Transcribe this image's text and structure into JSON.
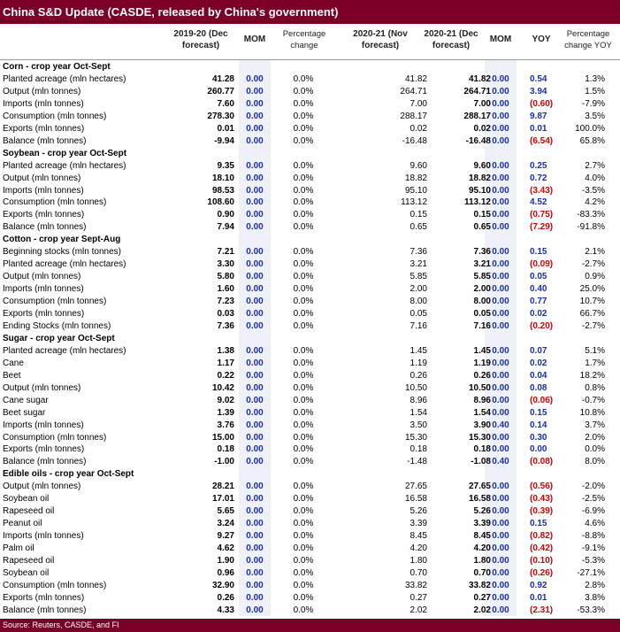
{
  "title": "China S&D Update (CASDE, released by China's government)",
  "headers": {
    "col1": "2019-20 (Dec forecast)",
    "col2": "MOM",
    "col3": "Percentage change",
    "col4": "2020-21 (Nov forecast)",
    "col5": "2020-21 (Dec forecast)",
    "col6": "MOM",
    "col7": "YOY",
    "col8": "Percentage change YOY"
  },
  "rows": [
    {
      "label": "Corn - crop year Oct-Sept",
      "section": true
    },
    {
      "label": "Planted acreage (mln hectares)",
      "v1": "41.28",
      "m1": "0.00",
      "p1": "0.0%",
      "v2": "41.82",
      "v3": "41.82",
      "m2": "0.00",
      "yoy": "0.54",
      "neg": false,
      "pct": "1.3%"
    },
    {
      "label": "Output (mln tonnes)",
      "v1": "260.77",
      "m1": "0.00",
      "p1": "0.0%",
      "v2": "264.71",
      "v3": "264.71",
      "m2": "0.00",
      "yoy": "3.94",
      "neg": false,
      "pct": "1.5%"
    },
    {
      "label": "Imports (mln tonnes)",
      "v1": "7.60",
      "m1": "0.00",
      "p1": "0.0%",
      "v2": "7.00",
      "v3": "7.00",
      "m2": "0.00",
      "yoy": "(0.60)",
      "neg": true,
      "pct": "-7.9%"
    },
    {
      "label": "Consumption (mln tonnes)",
      "v1": "278.30",
      "m1": "0.00",
      "p1": "0.0%",
      "v2": "288.17",
      "v3": "288.17",
      "m2": "0.00",
      "yoy": "9.87",
      "neg": false,
      "pct": "3.5%"
    },
    {
      "label": "Exports (mln tonnes)",
      "v1": "0.01",
      "m1": "0.00",
      "p1": "0.0%",
      "v2": "0.02",
      "v3": "0.02",
      "m2": "0.00",
      "yoy": "0.01",
      "neg": false,
      "pct": "100.0%"
    },
    {
      "label": "Balance (mln tonnes)",
      "v1": "-9.94",
      "m1": "0.00",
      "p1": "0.0%",
      "v2": "-16.48",
      "v3": "-16.48",
      "m2": "0.00",
      "yoy": "(6.54)",
      "neg": true,
      "pct": "65.8%"
    },
    {
      "label": "Soybean - crop year Oct-Sept",
      "section": true
    },
    {
      "label": "Planted acreage (mln hectares)",
      "v1": "9.35",
      "m1": "0.00",
      "p1": "0.0%",
      "v2": "9.60",
      "v3": "9.60",
      "m2": "0.00",
      "yoy": "0.25",
      "neg": false,
      "pct": "2.7%"
    },
    {
      "label": "Output (mln tonnes)",
      "v1": "18.10",
      "m1": "0.00",
      "p1": "0.0%",
      "v2": "18.82",
      "v3": "18.82",
      "m2": "0.00",
      "yoy": "0.72",
      "neg": false,
      "pct": "4.0%"
    },
    {
      "label": "Imports (mln tonnes)",
      "v1": "98.53",
      "m1": "0.00",
      "p1": "0.0%",
      "v2": "95.10",
      "v3": "95.10",
      "m2": "0.00",
      "yoy": "(3.43)",
      "neg": true,
      "pct": "-3.5%"
    },
    {
      "label": "Consumption (mln tonnes)",
      "v1": "108.60",
      "m1": "0.00",
      "p1": "0.0%",
      "v2": "113.12",
      "v3": "113.12",
      "m2": "0.00",
      "yoy": "4.52",
      "neg": false,
      "pct": "4.2%"
    },
    {
      "label": "Exports (mln tonnes)",
      "v1": "0.90",
      "m1": "0.00",
      "p1": "0.0%",
      "v2": "0.15",
      "v3": "0.15",
      "m2": "0.00",
      "yoy": "(0.75)",
      "neg": true,
      "pct": "-83.3%"
    },
    {
      "label": "Balance (mln tonnes)",
      "v1": "7.94",
      "m1": "0.00",
      "p1": "0.0%",
      "v2": "0.65",
      "v3": "0.65",
      "m2": "0.00",
      "yoy": "(7.29)",
      "neg": true,
      "pct": "-91.8%"
    },
    {
      "label": "Cotton - crop year Sept-Aug",
      "section": true
    },
    {
      "label": "Beginning stocks (mln tonnes)",
      "v1": "7.21",
      "m1": "0.00",
      "p1": "0.0%",
      "v2": "7.36",
      "v3": "7.36",
      "m2": "0.00",
      "yoy": "0.15",
      "neg": false,
      "pct": "2.1%"
    },
    {
      "label": "Planted acreage (mln hectares)",
      "v1": "3.30",
      "m1": "0.00",
      "p1": "0.0%",
      "v2": "3.21",
      "v3": "3.21",
      "m2": "0.00",
      "yoy": "(0.09)",
      "neg": true,
      "pct": "-2.7%"
    },
    {
      "label": "Output (mln tonnes)",
      "v1": "5.80",
      "m1": "0.00",
      "p1": "0.0%",
      "v2": "5.85",
      "v3": "5.85",
      "m2": "0.00",
      "yoy": "0.05",
      "neg": false,
      "pct": "0.9%"
    },
    {
      "label": "Imports (mln tonnes)",
      "v1": "1.60",
      "m1": "0.00",
      "p1": "0.0%",
      "v2": "2.00",
      "v3": "2.00",
      "m2": "0.00",
      "yoy": "0.40",
      "neg": false,
      "pct": "25.0%"
    },
    {
      "label": "Consumption (mln tonnes)",
      "v1": "7.23",
      "m1": "0.00",
      "p1": "0.0%",
      "v2": "8.00",
      "v3": "8.00",
      "m2": "0.00",
      "yoy": "0.77",
      "neg": false,
      "pct": "10.7%"
    },
    {
      "label": "Exports (mln tonnes)",
      "v1": "0.03",
      "m1": "0.00",
      "p1": "0.0%",
      "v2": "0.05",
      "v3": "0.05",
      "m2": "0.00",
      "yoy": "0.02",
      "neg": false,
      "pct": "66.7%"
    },
    {
      "label": "Ending Stocks (mln tonnes)",
      "v1": "7.36",
      "m1": "0.00",
      "p1": "0.0%",
      "v2": "7.16",
      "v3": "7.16",
      "m2": "0.00",
      "yoy": "(0.20)",
      "neg": true,
      "pct": "-2.7%"
    },
    {
      "label": "Sugar - crop year Oct-Sept",
      "section": true
    },
    {
      "label": "Planted acreage (mln hectares)",
      "v1": "1.38",
      "m1": "0.00",
      "p1": "0.0%",
      "v2": "1.45",
      "v3": "1.45",
      "m2": "0.00",
      "yoy": "0.07",
      "neg": false,
      "pct": "5.1%"
    },
    {
      "label": "Cane",
      "v1": "1.17",
      "m1": "0.00",
      "p1": "0.0%",
      "v2": "1.19",
      "v3": "1.19",
      "m2": "0.00",
      "yoy": "0.02",
      "neg": false,
      "pct": "1.7%"
    },
    {
      "label": "Beet",
      "v1": "0.22",
      "m1": "0.00",
      "p1": "0.0%",
      "v2": "0.26",
      "v3": "0.26",
      "m2": "0.00",
      "yoy": "0.04",
      "neg": false,
      "pct": "18.2%"
    },
    {
      "label": "Output (mln tonnes)",
      "v1": "10.42",
      "m1": "0.00",
      "p1": "0.0%",
      "v2": "10.50",
      "v3": "10.50",
      "m2": "0.00",
      "yoy": "0.08",
      "neg": false,
      "pct": "0.8%"
    },
    {
      "label": "Cane sugar",
      "v1": "9.02",
      "m1": "0.00",
      "p1": "0.0%",
      "v2": "8.96",
      "v3": "8.96",
      "m2": "0.00",
      "yoy": "(0.06)",
      "neg": true,
      "pct": "-0.7%"
    },
    {
      "label": "Beet sugar",
      "v1": "1.39",
      "m1": "0.00",
      "p1": "0.0%",
      "v2": "1.54",
      "v3": "1.54",
      "m2": "0.00",
      "yoy": "0.15",
      "neg": false,
      "pct": "10.8%"
    },
    {
      "label": "Imports (mln tonnes)",
      "v1": "3.76",
      "m1": "0.00",
      "p1": "0.0%",
      "v2": "3.50",
      "v3": "3.90",
      "m2": "0.40",
      "yoy": "0.14",
      "neg": false,
      "pct": "3.7%"
    },
    {
      "label": "Consumption (mln tonnes)",
      "v1": "15.00",
      "m1": "0.00",
      "p1": "0.0%",
      "v2": "15.30",
      "v3": "15.30",
      "m2": "0.00",
      "yoy": "0.30",
      "neg": false,
      "pct": "2.0%"
    },
    {
      "label": "Exports (mln tonnes)",
      "v1": "0.18",
      "m1": "0.00",
      "p1": "0.0%",
      "v2": "0.18",
      "v3": "0.18",
      "m2": "0.00",
      "yoy": "0.00",
      "neg": false,
      "pct": "0.0%"
    },
    {
      "label": "Balance (mln tonnes)",
      "v1": "-1.00",
      "m1": "0.00",
      "p1": "0.0%",
      "v2": "-1.48",
      "v3": "-1.08",
      "m2": "0.40",
      "yoy": "(0.08)",
      "neg": true,
      "pct": "8.0%"
    },
    {
      "label": "Edible oils - crop year Oct-Sept",
      "section": true
    },
    {
      "label": "Output (mln tonnes)",
      "v1": "28.21",
      "m1": "0.00",
      "p1": "0.0%",
      "v2": "27.65",
      "v3": "27.65",
      "m2": "0.00",
      "yoy": "(0.56)",
      "neg": true,
      "pct": "-2.0%"
    },
    {
      "label": "Soybean oil",
      "v1": "17.01",
      "m1": "0.00",
      "p1": "0.0%",
      "v2": "16.58",
      "v3": "16.58",
      "m2": "0.00",
      "yoy": "(0.43)",
      "neg": true,
      "pct": "-2.5%"
    },
    {
      "label": "Rapeseed oil",
      "v1": "5.65",
      "m1": "0.00",
      "p1": "0.0%",
      "v2": "5.26",
      "v3": "5.26",
      "m2": "0.00",
      "yoy": "(0.39)",
      "neg": true,
      "pct": "-6.9%"
    },
    {
      "label": "Peanut oil",
      "v1": "3.24",
      "m1": "0.00",
      "p1": "0.0%",
      "v2": "3.39",
      "v3": "3.39",
      "m2": "0.00",
      "yoy": "0.15",
      "neg": false,
      "pct": "4.6%"
    },
    {
      "label": "Imports (mln tonnes)",
      "v1": "9.27",
      "m1": "0.00",
      "p1": "0.0%",
      "v2": "8.45",
      "v3": "8.45",
      "m2": "0.00",
      "yoy": "(0.82)",
      "neg": true,
      "pct": "-8.8%"
    },
    {
      "label": "Palm oil",
      "v1": "4.62",
      "m1": "0.00",
      "p1": "0.0%",
      "v2": "4.20",
      "v3": "4.20",
      "m2": "0.00",
      "yoy": "(0.42)",
      "neg": true,
      "pct": "-9.1%"
    },
    {
      "label": "Rapeseed oil",
      "v1": "1.90",
      "m1": "0.00",
      "p1": "0.0%",
      "v2": "1.80",
      "v3": "1.80",
      "m2": "0.00",
      "yoy": "(0.10)",
      "neg": true,
      "pct": "-5.3%"
    },
    {
      "label": "Soybean oil",
      "v1": "0.96",
      "m1": "0.00",
      "p1": "0.0%",
      "v2": "0.70",
      "v3": "0.70",
      "m2": "0.00",
      "yoy": "(0.26)",
      "neg": true,
      "pct": "-27.1%"
    },
    {
      "label": "Consumption (mln tonnes)",
      "v1": "32.90",
      "m1": "0.00",
      "p1": "0.0%",
      "v2": "33.82",
      "v3": "33.82",
      "m2": "0.00",
      "yoy": "0.92",
      "neg": false,
      "pct": "2.8%"
    },
    {
      "label": "Exports (mln tonnes)",
      "v1": "0.26",
      "m1": "0.00",
      "p1": "0.0%",
      "v2": "0.27",
      "v3": "0.27",
      "m2": "0.00",
      "yoy": "0.01",
      "neg": false,
      "pct": "3.8%"
    },
    {
      "label": "Balance (mln tonnes)",
      "v1": "4.33",
      "m1": "0.00",
      "p1": "0.0%",
      "v2": "2.02",
      "v3": "2.02",
      "m2": "0.00",
      "yoy": "(2.31)",
      "neg": true,
      "pct": "-53.3%"
    }
  ],
  "footer": "Source: Reuters, CASDE, and FI"
}
